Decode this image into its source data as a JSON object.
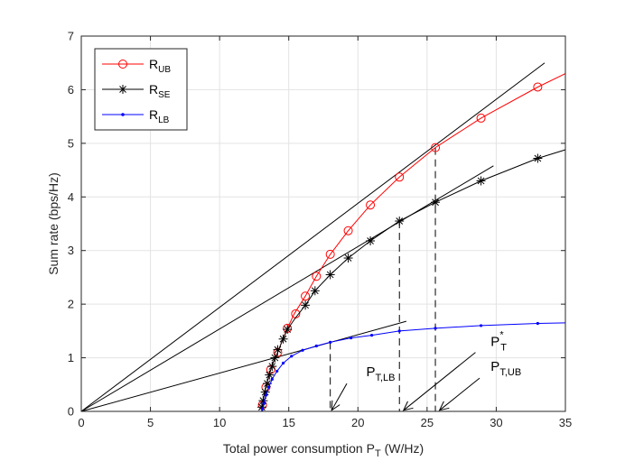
{
  "chart_data": {
    "type": "line",
    "title": "",
    "xlabel": "Total power consumption P_T (W/Hz)",
    "xlabel_parts": {
      "main": "Total power consumption P",
      "sub": "T",
      "tail": " (W/Hz)"
    },
    "ylabel": "Sum rate (bps/Hz)",
    "xlim": [
      0,
      35
    ],
    "ylim": [
      0,
      7
    ],
    "xticks": [
      0,
      5,
      10,
      15,
      20,
      25,
      30,
      35
    ],
    "yticks": [
      0,
      1,
      2,
      3,
      4,
      5,
      6,
      7
    ],
    "grid": true,
    "legend_position": "top-left",
    "series": [
      {
        "name": "R_UB",
        "label_main": "R",
        "label_sub": "UB",
        "color": "#ff0000",
        "marker": "circle",
        "points": [
          [
            13.05,
            0
          ],
          [
            13.1,
            0.12
          ],
          [
            13.2,
            0.28
          ],
          [
            13.35,
            0.45
          ],
          [
            13.5,
            0.6
          ],
          [
            13.7,
            0.78
          ],
          [
            13.9,
            0.93
          ],
          [
            14.2,
            1.1
          ],
          [
            14.5,
            1.3
          ],
          [
            14.9,
            1.55
          ],
          [
            15.4,
            1.82
          ],
          [
            16.2,
            2.15
          ],
          [
            17.0,
            2.52
          ],
          [
            18.0,
            2.93
          ],
          [
            19.3,
            3.37
          ],
          [
            20.9,
            3.85
          ],
          [
            23.0,
            4.37
          ],
          [
            25.6,
            4.92
          ],
          [
            28.9,
            5.47
          ],
          [
            33.0,
            6.05
          ],
          [
            35,
            6.3
          ]
        ],
        "markers": [
          [
            13.1,
            0.12
          ],
          [
            13.35,
            0.45
          ],
          [
            13.7,
            0.78
          ],
          [
            14.2,
            1.1
          ],
          [
            14.9,
            1.55
          ],
          [
            15.5,
            1.82
          ],
          [
            16.2,
            2.15
          ],
          [
            17.0,
            2.52
          ],
          [
            18.0,
            2.93
          ],
          [
            19.3,
            3.37
          ],
          [
            20.9,
            3.85
          ],
          [
            23.0,
            4.37
          ],
          [
            25.6,
            4.92
          ],
          [
            28.9,
            5.47
          ],
          [
            33.0,
            6.05
          ]
        ]
      },
      {
        "name": "R_SE",
        "label_main": "R",
        "label_sub": "SE",
        "color": "#000000",
        "marker": "asterisk",
        "points": [
          [
            13.05,
            0
          ],
          [
            13.1,
            0.12
          ],
          [
            13.2,
            0.28
          ],
          [
            13.35,
            0.45
          ],
          [
            13.5,
            0.6
          ],
          [
            13.7,
            0.78
          ],
          [
            13.9,
            0.93
          ],
          [
            14.2,
            1.1
          ],
          [
            14.5,
            1.3
          ],
          [
            14.9,
            1.53
          ],
          [
            15.5,
            1.75
          ],
          [
            16.2,
            1.98
          ],
          [
            16.9,
            2.25
          ],
          [
            18.0,
            2.55
          ],
          [
            19.3,
            2.86
          ],
          [
            20.9,
            3.18
          ],
          [
            23.0,
            3.55
          ],
          [
            25.6,
            3.9
          ],
          [
            28.9,
            4.3
          ],
          [
            33.0,
            4.72
          ],
          [
            35,
            4.88
          ]
        ],
        "markers": [
          [
            13.05,
            0.08
          ],
          [
            13.15,
            0.2
          ],
          [
            13.3,
            0.36
          ],
          [
            13.45,
            0.52
          ],
          [
            13.6,
            0.68
          ],
          [
            13.8,
            0.84
          ],
          [
            14.0,
            1.0
          ],
          [
            14.2,
            1.15
          ],
          [
            14.6,
            1.35
          ],
          [
            14.9,
            1.53
          ],
          [
            16.2,
            1.98
          ],
          [
            16.9,
            2.25
          ],
          [
            18.0,
            2.55
          ],
          [
            19.3,
            2.86
          ],
          [
            20.9,
            3.18
          ],
          [
            23.0,
            3.55
          ],
          [
            25.6,
            3.9
          ],
          [
            28.9,
            4.3
          ],
          [
            33.0,
            4.72
          ]
        ]
      },
      {
        "name": "R_LB",
        "label_main": "R",
        "label_sub": "LB",
        "color": "#0000ff",
        "marker": "dot",
        "points": [
          [
            13.1,
            0
          ],
          [
            13.2,
            0.15
          ],
          [
            13.35,
            0.3
          ],
          [
            13.55,
            0.45
          ],
          [
            13.8,
            0.6
          ],
          [
            14.15,
            0.75
          ],
          [
            14.6,
            0.9
          ],
          [
            15.2,
            1.03
          ],
          [
            16.0,
            1.14
          ],
          [
            17.0,
            1.22
          ],
          [
            18.0,
            1.29
          ],
          [
            19.5,
            1.37
          ],
          [
            21.0,
            1.42
          ],
          [
            23.0,
            1.5
          ],
          [
            25.6,
            1.55
          ],
          [
            28.9,
            1.6
          ],
          [
            33.0,
            1.64
          ],
          [
            35,
            1.65
          ]
        ],
        "markers": [
          [
            13.1,
            0.05
          ],
          [
            13.2,
            0.15
          ],
          [
            13.35,
            0.3
          ],
          [
            13.55,
            0.45
          ],
          [
            13.8,
            0.6
          ],
          [
            14.15,
            0.75
          ],
          [
            14.6,
            0.9
          ],
          [
            15.2,
            1.03
          ],
          [
            16.0,
            1.14
          ],
          [
            17.0,
            1.22
          ],
          [
            18.0,
            1.29
          ],
          [
            19.5,
            1.37
          ],
          [
            21.0,
            1.42
          ],
          [
            23.0,
            1.5
          ],
          [
            25.6,
            1.55
          ],
          [
            28.9,
            1.6
          ],
          [
            33.0,
            1.64
          ]
        ]
      }
    ],
    "tangent_lines": [
      {
        "name": "tangent-ub",
        "from": [
          0,
          0
        ],
        "to": [
          33.5,
          6.5
        ]
      },
      {
        "name": "tangent-se",
        "from": [
          0,
          0
        ],
        "to": [
          29.8,
          4.58
        ]
      },
      {
        "name": "tangent-lb",
        "from": [
          0,
          0
        ],
        "to": [
          23.5,
          1.68
        ]
      }
    ],
    "drop_lines": [
      {
        "name": "drop-lb",
        "x": 18.0,
        "y": 1.29
      },
      {
        "name": "drop-se",
        "x": 23.0,
        "y": 3.55
      },
      {
        "name": "drop-ub",
        "x": 25.6,
        "y": 4.92
      }
    ],
    "arrows": [
      {
        "name": "arrow-lb",
        "from": [
          19.2,
          0.52
        ],
        "to": [
          18.1,
          0.02
        ]
      },
      {
        "name": "arrow-se",
        "from": [
          28.5,
          1.1
        ],
        "to": [
          23.3,
          0.02
        ]
      },
      {
        "name": "arrow-ub",
        "from": [
          28.8,
          0.62
        ],
        "to": [
          25.9,
          0.02
        ]
      }
    ],
    "annotations": [
      {
        "name": "label-pt-star",
        "main": "P",
        "sub": "T",
        "sup": "*",
        "x": 29.6,
        "y": 1.22
      },
      {
        "name": "label-pt-lb",
        "main": "P",
        "sub": "T,LB",
        "sup": "",
        "x": 20.6,
        "y": 0.66
      },
      {
        "name": "label-pt-ub",
        "main": "P",
        "sub": "T,UB",
        "sup": "",
        "x": 29.6,
        "y": 0.76
      }
    ]
  }
}
